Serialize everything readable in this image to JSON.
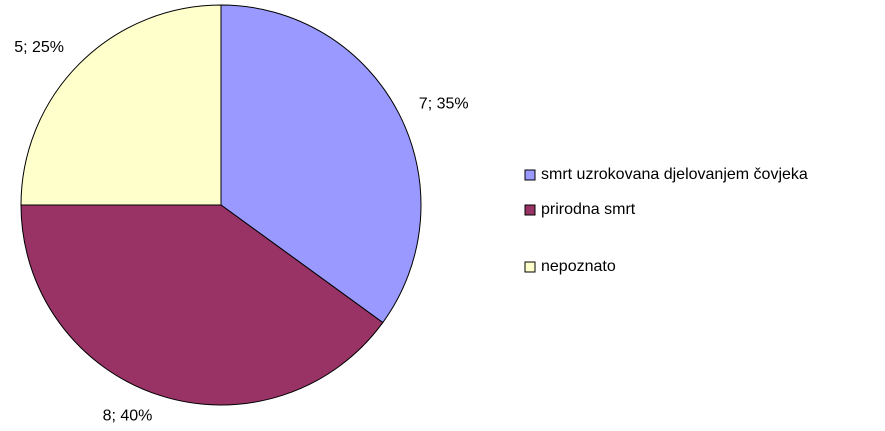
{
  "chart_data": {
    "type": "pie",
    "categories": [
      "smrt uzrokovana djelovanjem čovjeka",
      "prirodna smrt",
      "nepoznato"
    ],
    "values": [
      7,
      8,
      5
    ],
    "value_labels": [
      "7; 35%",
      "8; 40%",
      "5; 25%"
    ],
    "colors": [
      "#9999ff",
      "#993366",
      "#ffffcc"
    ],
    "legend": "right"
  }
}
